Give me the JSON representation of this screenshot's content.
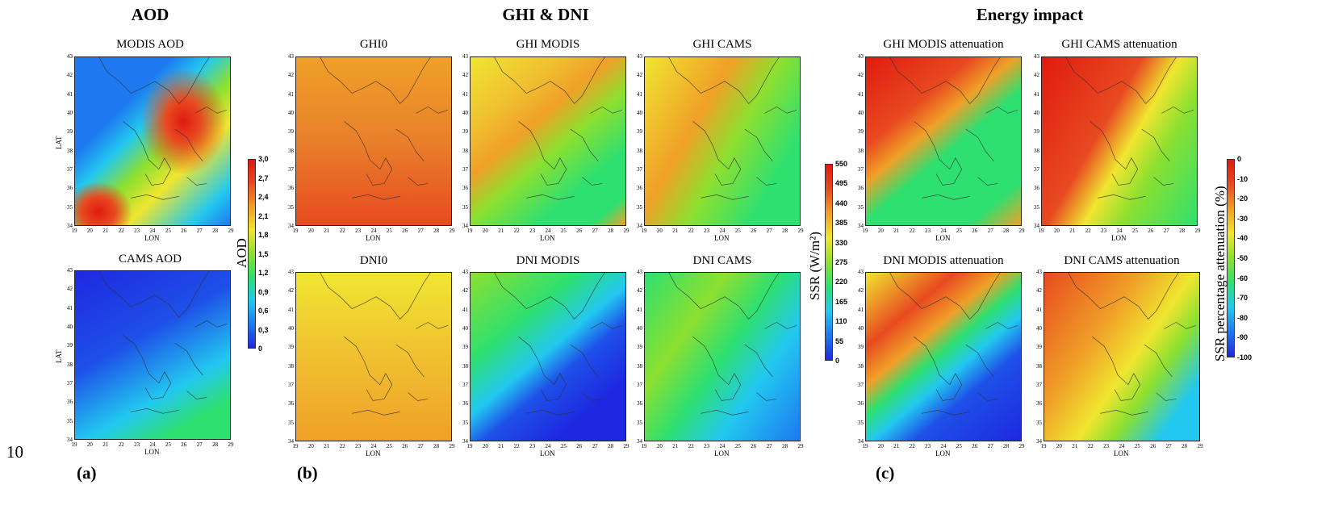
{
  "page_number": "10",
  "sections": {
    "aod": {
      "title": "AOD",
      "label": "(a)"
    },
    "ghi_dni": {
      "title": "GHI & DNI",
      "label": "(b)"
    },
    "energy": {
      "title": "Energy impact",
      "label": "(c)"
    }
  },
  "axes": {
    "x_label": "LON",
    "y_label": "LAT",
    "x_ticks": [
      "19",
      "20",
      "21",
      "22",
      "23",
      "24",
      "25",
      "26",
      "27",
      "28",
      "29"
    ],
    "y_ticks": [
      "43",
      "42",
      "41",
      "40",
      "39",
      "38",
      "37",
      "36",
      "35",
      "34"
    ]
  },
  "maps": {
    "modis_aod": {
      "title": "MODIS AOD"
    },
    "cams_aod": {
      "title": "CAMS AOD"
    },
    "ghi0": {
      "title": "GHI0"
    },
    "ghi_modis": {
      "title": "GHI MODIS"
    },
    "ghi_cams": {
      "title": "GHI CAMS"
    },
    "dni0": {
      "title": "DNI0"
    },
    "dni_modis": {
      "title": "DNI MODIS"
    },
    "dni_cams": {
      "title": "DNI CAMS"
    },
    "ghi_modis_att": {
      "title": "GHI MODIS attenuation"
    },
    "ghi_cams_att": {
      "title": "GHI CAMS attenuation"
    },
    "dni_modis_att": {
      "title": "DNI MODIS attenuation"
    },
    "dni_cams_att": {
      "title": "DNI CAMS attenuation"
    }
  },
  "colorbars": {
    "aod": {
      "label": "AOD",
      "ticks": [
        "3,0",
        "2,7",
        "2,4",
        "2,1",
        "1,8",
        "1,5",
        "1,2",
        "0,9",
        "0,6",
        "0,3",
        "0"
      ]
    },
    "ssr": {
      "label": "SSR (W/m²)",
      "ticks": [
        "550",
        "495",
        "440",
        "385",
        "330",
        "275",
        "220",
        "165",
        "110",
        "55",
        "0"
      ]
    },
    "attenuation": {
      "label": "SSR percentage attenuation (%)",
      "ticks": [
        "0",
        "-10",
        "-20",
        "-30",
        "-40",
        "-50",
        "-60",
        "-70",
        "-80",
        "-90",
        "-100"
      ]
    }
  },
  "colors": {
    "scale": [
      "#1e28e0",
      "#1e78f0",
      "#22c8f0",
      "#2ee070",
      "#8ce030",
      "#f0e630",
      "#f0a028",
      "#e84a20",
      "#e01a10"
    ]
  }
}
